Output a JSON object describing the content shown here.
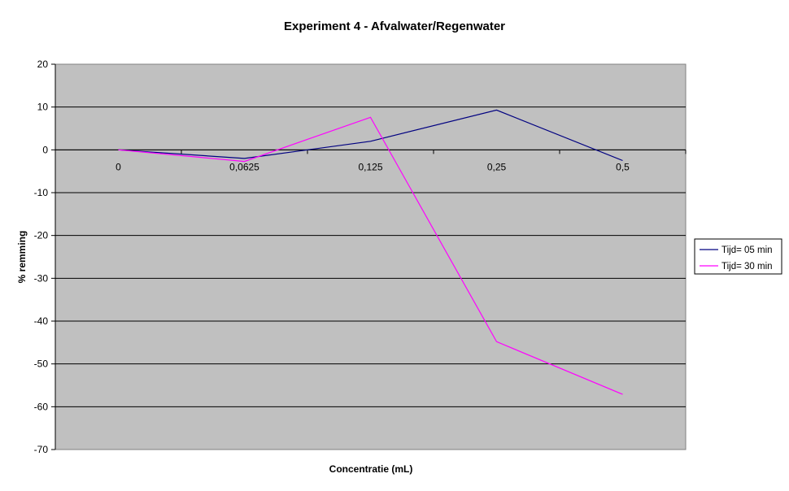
{
  "chart_data": {
    "type": "line",
    "title": "Experiment 4 - Afvalwater/Regenwater",
    "xlabel": "Concentratie (mL)",
    "ylabel": "% remming",
    "categories": [
      "0",
      "0,0625",
      "0,125",
      "0,25",
      "0,5"
    ],
    "ylim": [
      -70,
      20
    ],
    "yticks": [
      20,
      10,
      0,
      -10,
      -20,
      -30,
      -40,
      -50,
      -60,
      -70
    ],
    "grid": true,
    "legend_position": "right",
    "plot_background": "#c0c0c0",
    "series": [
      {
        "name": "Tijd= 05 min",
        "color": "#000080",
        "values": [
          0,
          -2,
          2,
          9.3,
          -2.5
        ]
      },
      {
        "name": "Tijd= 30 min",
        "color": "#ff00ff",
        "values": [
          0,
          -2.7,
          7.6,
          -44.8,
          -57.1
        ]
      }
    ]
  }
}
